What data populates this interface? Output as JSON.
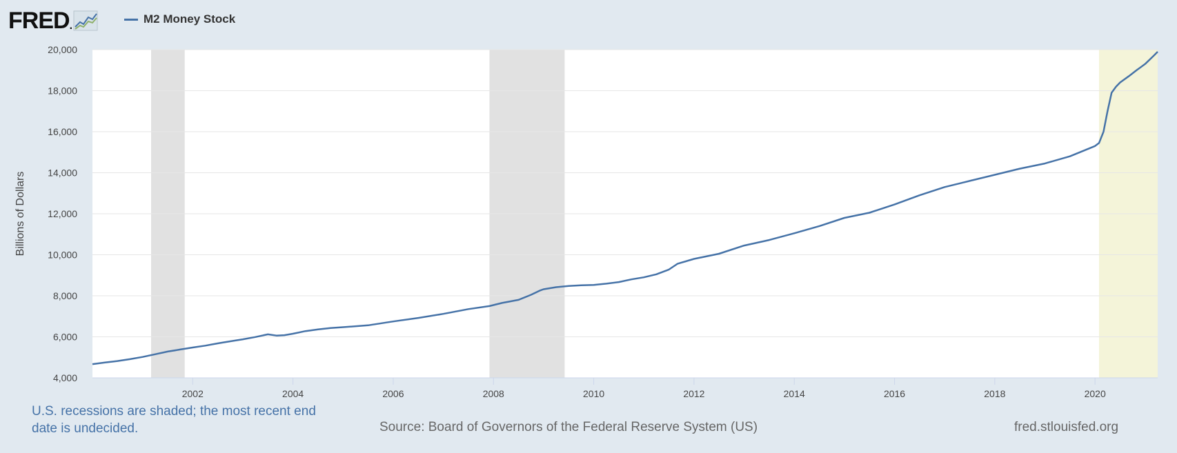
{
  "header": {
    "logo_text": "FRED",
    "logo_dot": ".",
    "legend_label": "M2 Money Stock"
  },
  "colors": {
    "series": "#4572a7",
    "recession": "#e1e1e1",
    "undecided_recession": "#f4f4d9",
    "plot_bg": "#ffffff",
    "page_bg": "#e1e9f0",
    "grid": "#e6e6e6"
  },
  "footer": {
    "note": "U.S. recessions are shaded; the most recent end date is undecided.",
    "source": "Source: Board of Governors of the Federal Reserve System (US)",
    "site": "fred.stlouisfed.org"
  },
  "chart_data": {
    "type": "line",
    "title": "",
    "xlabel": "",
    "ylabel": "Billions of Dollars",
    "xlim": [
      2000.0,
      2021.25
    ],
    "ylim": [
      4000,
      20000
    ],
    "yticks": [
      4000,
      6000,
      8000,
      10000,
      12000,
      14000,
      16000,
      18000,
      20000
    ],
    "ytick_labels": [
      "4,000",
      "6,000",
      "8,000",
      "10,000",
      "12,000",
      "14,000",
      "16,000",
      "18,000",
      "20,000"
    ],
    "xticks": [
      2002,
      2004,
      2006,
      2008,
      2010,
      2012,
      2014,
      2016,
      2018,
      2020
    ],
    "xtick_labels": [
      "2002",
      "2004",
      "2006",
      "2008",
      "2010",
      "2012",
      "2014",
      "2016",
      "2018",
      "2020"
    ],
    "recessions": [
      {
        "start": 2001.17,
        "end": 2001.84,
        "undecided": false
      },
      {
        "start": 2007.92,
        "end": 2009.42,
        "undecided": false
      },
      {
        "start": 2020.08,
        "end": 2021.25,
        "undecided": true
      }
    ],
    "series": [
      {
        "name": "M2 Money Stock",
        "x": [
          2000.0,
          2000.25,
          2000.5,
          2000.75,
          2001.0,
          2001.25,
          2001.5,
          2001.75,
          2002.0,
          2002.25,
          2002.5,
          2002.75,
          2003.0,
          2003.25,
          2003.5,
          2003.67,
          2003.83,
          2004.0,
          2004.25,
          2004.5,
          2004.75,
          2005.0,
          2005.5,
          2006.0,
          2006.5,
          2007.0,
          2007.5,
          2007.92,
          2008.17,
          2008.5,
          2008.75,
          2008.92,
          2009.0,
          2009.25,
          2009.5,
          2009.75,
          2010.0,
          2010.25,
          2010.5,
          2010.75,
          2011.0,
          2011.25,
          2011.5,
          2011.67,
          2012.0,
          2012.5,
          2013.0,
          2013.5,
          2014.0,
          2014.5,
          2015.0,
          2015.5,
          2016.0,
          2016.5,
          2017.0,
          2017.5,
          2018.0,
          2018.5,
          2019.0,
          2019.5,
          2020.0,
          2020.08,
          2020.17,
          2020.25,
          2020.33,
          2020.42,
          2020.5,
          2020.67,
          2020.83,
          2021.0,
          2021.17,
          2021.25
        ],
        "values": [
          4670,
          4750,
          4820,
          4910,
          5020,
          5150,
          5280,
          5380,
          5480,
          5570,
          5680,
          5780,
          5880,
          5990,
          6120,
          6060,
          6080,
          6150,
          6280,
          6360,
          6430,
          6470,
          6560,
          6750,
          6920,
          7120,
          7350,
          7500,
          7650,
          7800,
          8050,
          8250,
          8320,
          8420,
          8480,
          8510,
          8530,
          8590,
          8670,
          8800,
          8900,
          9050,
          9280,
          9560,
          9800,
          10050,
          10450,
          10720,
          11050,
          11400,
          11800,
          12050,
          12450,
          12900,
          13300,
          13600,
          13900,
          14200,
          14450,
          14800,
          15300,
          15450,
          16000,
          17000,
          17900,
          18200,
          18400,
          18700,
          19000,
          19300,
          19700,
          19900
        ]
      }
    ]
  }
}
